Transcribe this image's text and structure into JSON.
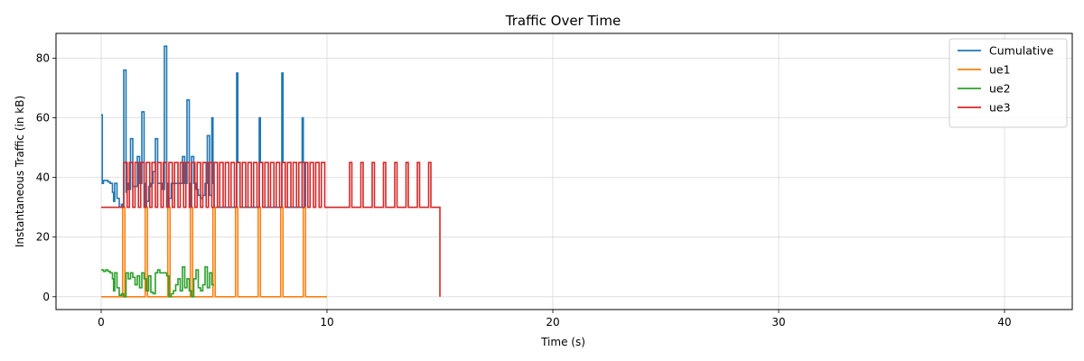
{
  "chart_data": {
    "type": "line",
    "step": true,
    "title": "Traffic Over Time",
    "xlabel": "Time (s)",
    "ylabel": "Instantaneous Traffic (in kB)",
    "xlim": [
      -2,
      43
    ],
    "ylim": [
      -4.3,
      88.3
    ],
    "xticks": [
      0,
      10,
      20,
      30,
      40
    ],
    "yticks": [
      0,
      20,
      40,
      60,
      80
    ],
    "grid": true,
    "legend": "top-right",
    "series": [
      {
        "name": "Cumulative",
        "color": "#1f77b4",
        "x": [
          0,
          0.05,
          0.1,
          0.2,
          0.3,
          0.4,
          0.5,
          0.55,
          0.6,
          0.7,
          0.8,
          0.9,
          0.95,
          1.0,
          1.1,
          1.15,
          1.2,
          1.3,
          1.4,
          1.5,
          1.6,
          1.7,
          1.8,
          1.9,
          1.95,
          2.0,
          2.1,
          2.2,
          2.3,
          2.4,
          2.5,
          2.6,
          2.7,
          2.8,
          2.9,
          2.95,
          3.0,
          3.1,
          3.2,
          3.3,
          3.4,
          3.5,
          3.6,
          3.7,
          3.8,
          3.9,
          3.95,
          4.0,
          4.1,
          4.2,
          4.3,
          4.4,
          4.5,
          4.6,
          4.7,
          4.8,
          4.9,
          4.95,
          5.0,
          6.0,
          6.05,
          6.15,
          7.0,
          7.05,
          7.15,
          8.0,
          8.05,
          8.15,
          8.9,
          8.95,
          9.05
        ],
        "y": [
          61,
          38,
          39,
          39,
          38.5,
          38,
          35,
          32,
          38,
          33,
          30,
          31,
          30,
          76,
          35,
          38,
          36,
          53,
          37,
          37,
          47,
          38,
          62,
          38,
          30,
          32,
          37,
          38,
          42,
          53,
          38,
          38,
          36,
          84,
          38,
          30,
          33,
          38,
          38,
          38,
          38,
          38,
          47,
          38,
          66,
          38,
          30,
          47,
          38,
          36,
          34,
          33,
          34,
          38,
          54,
          34,
          60,
          38,
          30,
          75,
          45,
          30,
          60,
          45,
          30,
          75,
          45,
          30,
          60,
          45,
          30
        ]
      },
      {
        "name": "ue1",
        "color": "#ff7f0e",
        "x": [
          0,
          0.95,
          1.05,
          1.95,
          2.05,
          2.95,
          3.05,
          3.95,
          4.05,
          4.95,
          5.05,
          5.95,
          6.05,
          6.95,
          7.05,
          7.95,
          8.05,
          8.95,
          9.05,
          10.0
        ],
        "y": [
          0,
          30,
          0,
          30,
          0,
          30,
          0,
          30,
          0,
          30,
          0,
          30,
          0,
          30,
          0,
          30,
          0,
          30,
          0,
          0
        ]
      },
      {
        "name": "ue2",
        "color": "#2ca02c",
        "x": [
          0,
          0.1,
          0.2,
          0.3,
          0.4,
          0.5,
          0.55,
          0.6,
          0.7,
          0.8,
          0.9,
          1.0,
          1.1,
          1.2,
          1.3,
          1.4,
          1.5,
          1.6,
          1.7,
          1.8,
          1.9,
          2.0,
          2.1,
          2.2,
          2.3,
          2.4,
          2.5,
          2.6,
          2.7,
          2.8,
          2.9,
          3.0,
          3.1,
          3.2,
          3.3,
          3.4,
          3.5,
          3.6,
          3.7,
          3.8,
          3.9,
          4.0,
          4.1,
          4.2,
          4.3,
          4.4,
          4.5,
          4.6,
          4.7,
          4.8,
          4.9,
          5.0
        ],
        "y": [
          9,
          8.5,
          9,
          8.5,
          8,
          6,
          2,
          8,
          3,
          0.5,
          1,
          0,
          8,
          6,
          8,
          6.5,
          4,
          7,
          3,
          8,
          6,
          2,
          7,
          1.5,
          1,
          8,
          9,
          8,
          8,
          8,
          7,
          0,
          1,
          2,
          4,
          6,
          2,
          10,
          3,
          6,
          2,
          0,
          6,
          9,
          3,
          2,
          4,
          10,
          3,
          8,
          4,
          4
        ]
      },
      {
        "name": "ue3",
        "color": "#d62728",
        "x": [
          0,
          1.0,
          1.15,
          1.25,
          1.4,
          1.5,
          1.65,
          1.75,
          1.9,
          2.0,
          2.15,
          2.25,
          2.4,
          2.5,
          2.65,
          2.75,
          2.9,
          3.0,
          3.15,
          3.25,
          3.4,
          3.5,
          3.65,
          3.75,
          3.9,
          4.0,
          4.15,
          4.25,
          4.4,
          4.5,
          4.65,
          4.75,
          4.9,
          5.0,
          5.15,
          5.25,
          5.4,
          5.5,
          5.65,
          5.75,
          5.9,
          6.0,
          6.15,
          6.25,
          6.4,
          6.5,
          6.65,
          6.75,
          6.9,
          7.0,
          7.15,
          7.25,
          7.4,
          7.5,
          7.65,
          7.75,
          7.9,
          8.0,
          8.15,
          8.25,
          8.4,
          8.5,
          8.65,
          8.75,
          8.9,
          9.0,
          9.15,
          9.25,
          9.4,
          9.5,
          9.65,
          9.75,
          9.9,
          10.0,
          11.0,
          11.1,
          11.5,
          11.6,
          12.0,
          12.1,
          12.5,
          12.6,
          13.0,
          13.1,
          13.5,
          13.6,
          14.0,
          14.1,
          14.5,
          14.6,
          15.0
        ],
        "y": [
          30,
          45,
          30,
          45,
          30,
          45,
          30,
          45,
          30,
          45,
          30,
          45,
          30,
          45,
          30,
          45,
          30,
          45,
          30,
          45,
          30,
          45,
          30,
          45,
          30,
          45,
          30,
          45,
          30,
          45,
          30,
          45,
          30,
          45,
          30,
          45,
          30,
          45,
          30,
          45,
          30,
          45,
          30,
          45,
          30,
          45,
          30,
          45,
          30,
          45,
          30,
          45,
          30,
          45,
          30,
          45,
          30,
          45,
          30,
          45,
          30,
          45,
          30,
          45,
          30,
          45,
          30,
          45,
          30,
          45,
          30,
          45,
          30,
          30,
          45,
          30,
          45,
          30,
          45,
          30,
          45,
          30,
          45,
          30,
          45,
          30,
          45,
          30,
          45,
          30,
          0
        ]
      }
    ]
  }
}
